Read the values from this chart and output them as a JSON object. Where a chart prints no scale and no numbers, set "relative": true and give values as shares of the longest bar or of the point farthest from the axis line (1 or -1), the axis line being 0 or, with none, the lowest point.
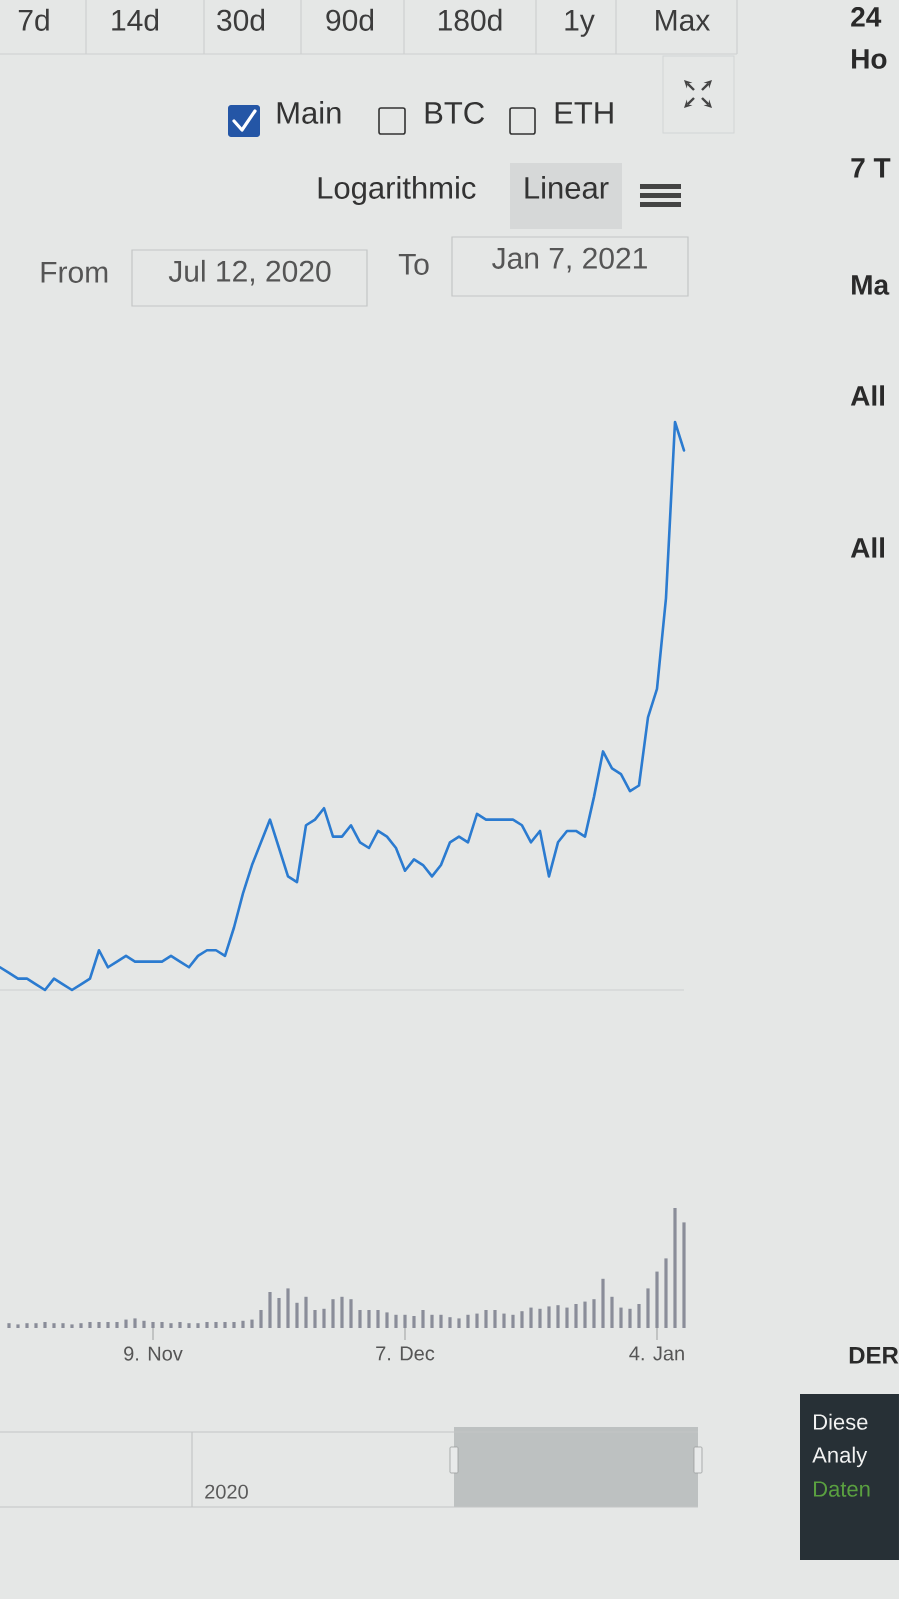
{
  "chart_data": [
    {
      "type": "line",
      "relative": true,
      "color": "#2b7bd0",
      "x": [
        "2020-10-23",
        "2020-10-24",
        "2020-10-25",
        "2020-10-26",
        "2020-10-27",
        "2020-10-28",
        "2020-10-29",
        "2020-10-30",
        "2020-10-31",
        "2020-11-01",
        "2020-11-02",
        "2020-11-03",
        "2020-11-04",
        "2020-11-05",
        "2020-11-06",
        "2020-11-07",
        "2020-11-08",
        "2020-11-09",
        "2020-11-10",
        "2020-11-11",
        "2020-11-12",
        "2020-11-13",
        "2020-11-14",
        "2020-11-15",
        "2020-11-16",
        "2020-11-17",
        "2020-11-18",
        "2020-11-19",
        "2020-11-20",
        "2020-11-21",
        "2020-11-22",
        "2020-11-23",
        "2020-11-24",
        "2020-11-25",
        "2020-11-26",
        "2020-11-27",
        "2020-11-28",
        "2020-11-29",
        "2020-11-30",
        "2020-12-01",
        "2020-12-02",
        "2020-12-03",
        "2020-12-04",
        "2020-12-05",
        "2020-12-06",
        "2020-12-07",
        "2020-12-08",
        "2020-12-09",
        "2020-12-10",
        "2020-12-11",
        "2020-12-12",
        "2020-12-13",
        "2020-12-14",
        "2020-12-15",
        "2020-12-16",
        "2020-12-17",
        "2020-12-18",
        "2020-12-19",
        "2020-12-20",
        "2020-12-21",
        "2020-12-22",
        "2020-12-23",
        "2020-12-24",
        "2020-12-25",
        "2020-12-26",
        "2020-12-27",
        "2020-12-28",
        "2020-12-29",
        "2020-12-30",
        "2020-12-31",
        "2021-01-01",
        "2021-01-02",
        "2021-01-03",
        "2021-01-04",
        "2021-01-05",
        "2021-01-06",
        "2021-01-07"
      ],
      "values": [
        0.04,
        0.03,
        0.02,
        0.02,
        0.01,
        0,
        0.02,
        0.01,
        0,
        0.01,
        0.02,
        0.07,
        0.04,
        0.05,
        0.06,
        0.05,
        0.05,
        0.05,
        0.05,
        0.06,
        0.05,
        0.04,
        0.06,
        0.07,
        0.07,
        0.06,
        0.11,
        0.17,
        0.22,
        0.26,
        0.3,
        0.25,
        0.2,
        0.19,
        0.29,
        0.3,
        0.32,
        0.27,
        0.27,
        0.29,
        0.26,
        0.25,
        0.28,
        0.27,
        0.25,
        0.21,
        0.23,
        0.22,
        0.2,
        0.22,
        0.26,
        0.27,
        0.26,
        0.31,
        0.3,
        0.3,
        0.3,
        0.3,
        0.29,
        0.26,
        0.28,
        0.2,
        0.26,
        0.28,
        0.28,
        0.27,
        0.34,
        0.42,
        0.39,
        0.38,
        0.35,
        0.36,
        0.48,
        0.53,
        0.69,
        1,
        0.95
      ],
      "xlim": [
        "2020-10-23",
        "2021-01-07"
      ],
      "tick_labels": false,
      "annotations": [
        "7d",
        "14d",
        "30d",
        "90d",
        "180d",
        "1y",
        "Max",
        "Main",
        "BTC",
        "ETH",
        "Logarithmic",
        "Linear",
        "From",
        "Jul 12, 2020",
        "To",
        "Jan 7, 2021"
      ]
    },
    {
      "type": "bar",
      "relative": true,
      "color": "#8a8d99",
      "x": [
        "2020-10-24",
        "2020-10-25",
        "2020-10-26",
        "2020-10-27",
        "2020-10-28",
        "2020-10-29",
        "2020-10-30",
        "2020-10-31",
        "2020-11-01",
        "2020-11-02",
        "2020-11-03",
        "2020-11-04",
        "2020-11-05",
        "2020-11-06",
        "2020-11-07",
        "2020-11-08",
        "2020-11-09",
        "2020-11-10",
        "2020-11-11",
        "2020-11-12",
        "2020-11-13",
        "2020-11-14",
        "2020-11-15",
        "2020-11-16",
        "2020-11-17",
        "2020-11-18",
        "2020-11-19",
        "2020-11-20",
        "2020-11-21",
        "2020-11-22",
        "2020-11-23",
        "2020-11-24",
        "2020-11-25",
        "2020-11-26",
        "2020-11-27",
        "2020-11-28",
        "2020-11-29",
        "2020-11-30",
        "2020-12-01",
        "2020-12-02",
        "2020-12-03",
        "2020-12-04",
        "2020-12-05",
        "2020-12-06",
        "2020-12-07",
        "2020-12-08",
        "2020-12-09",
        "2020-12-10",
        "2020-12-11",
        "2020-12-12",
        "2020-12-13",
        "2020-12-14",
        "2020-12-15",
        "2020-12-16",
        "2020-12-17",
        "2020-12-18",
        "2020-12-19",
        "2020-12-20",
        "2020-12-21",
        "2020-12-22",
        "2020-12-23",
        "2020-12-24",
        "2020-12-25",
        "2020-12-26",
        "2020-12-27",
        "2020-12-28",
        "2020-12-29",
        "2020-12-30",
        "2020-12-31",
        "2021-01-01",
        "2021-01-02",
        "2021-01-03",
        "2021-01-04",
        "2021-01-05",
        "2021-01-06",
        "2021-01-07"
      ],
      "values": [
        0.04,
        0.03,
        0.04,
        0.04,
        0.05,
        0.04,
        0.04,
        0.03,
        0.04,
        0.05,
        0.05,
        0.05,
        0.05,
        0.07,
        0.08,
        0.06,
        0.05,
        0.05,
        0.04,
        0.05,
        0.04,
        0.04,
        0.05,
        0.05,
        0.05,
        0.05,
        0.06,
        0.07,
        0.15,
        0.3,
        0.25,
        0.33,
        0.21,
        0.26,
        0.15,
        0.16,
        0.24,
        0.26,
        0.24,
        0.15,
        0.15,
        0.15,
        0.13,
        0.11,
        0.11,
        0.1,
        0.15,
        0.11,
        0.11,
        0.09,
        0.08,
        0.11,
        0.12,
        0.15,
        0.15,
        0.12,
        0.11,
        0.14,
        0.17,
        0.16,
        0.18,
        0.19,
        0.17,
        0.2,
        0.22,
        0.24,
        0.41,
        0.26,
        0.17,
        0.16,
        0.2,
        0.33,
        0.47,
        0.58,
        1,
        0.88
      ],
      "xlim": [
        "2020-10-23",
        "2021-01-07"
      ],
      "xticks": [
        {
          "value": "2020-11-09",
          "label": "9. Nov"
        },
        {
          "value": "2020-12-07",
          "label": "7. Dec"
        },
        {
          "value": "2021-01-04",
          "label": "4. Jan"
        }
      ],
      "tick_labels": "x",
      "annotations": [
        "2020"
      ]
    },
    {
      "type": "other",
      "annotations": [
        "24",
        "Ho",
        "7 T",
        "Ma",
        "All",
        "All",
        "DER",
        "Diese",
        "Analy",
        "Daten"
      ]
    }
  ]
}
